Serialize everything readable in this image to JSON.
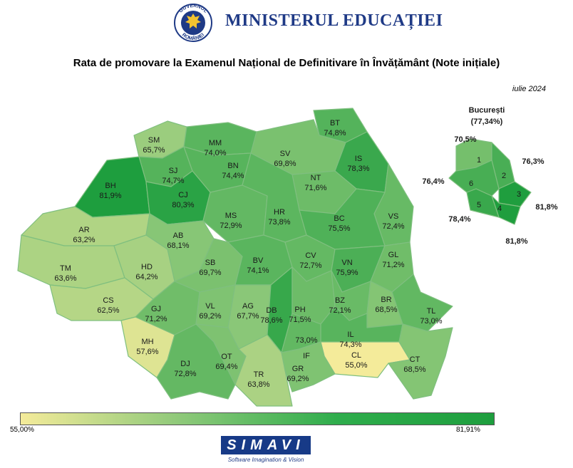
{
  "header": {
    "ministry": "MINISTERUL EDUCAȚIEI",
    "seal_top_text": "GUVERNUL",
    "seal_bottom_text": "ROMÂNIEI",
    "brand_color": "#1f3a86"
  },
  "title": "Rata de promovare la Examenul Național de Definitivare în Învățământ (Note inițiale)",
  "date": "iulie 2024",
  "counties": [
    {
      "code": "SM",
      "value": "65,7%"
    },
    {
      "code": "MM",
      "value": "74,0%"
    },
    {
      "code": "BT",
      "value": "74,8%"
    },
    {
      "code": "SV",
      "value": "69,8%"
    },
    {
      "code": "SJ",
      "value": "74,7%"
    },
    {
      "code": "BN",
      "value": "74,4%"
    },
    {
      "code": "IS",
      "value": "78,3%"
    },
    {
      "code": "BH",
      "value": "81,9%"
    },
    {
      "code": "CJ",
      "value": "80,3%"
    },
    {
      "code": "NT",
      "value": "71,6%"
    },
    {
      "code": "AR",
      "value": "63,2%"
    },
    {
      "code": "MS",
      "value": "72,9%"
    },
    {
      "code": "HR",
      "value": "73,8%"
    },
    {
      "code": "BC",
      "value": "75,5%"
    },
    {
      "code": "VS",
      "value": "72,4%"
    },
    {
      "code": "AB",
      "value": "68,1%"
    },
    {
      "code": "TM",
      "value": "63,6%"
    },
    {
      "code": "HD",
      "value": "64,2%"
    },
    {
      "code": "SB",
      "value": "69,7%"
    },
    {
      "code": "BV",
      "value": "74,1%"
    },
    {
      "code": "CV",
      "value": "72,7%"
    },
    {
      "code": "VN",
      "value": "75,9%"
    },
    {
      "code": "GL",
      "value": "71,2%"
    },
    {
      "code": "CS",
      "value": "62,5%"
    },
    {
      "code": "VL",
      "value": "69,2%"
    },
    {
      "code": "AG",
      "value": "67,7%"
    },
    {
      "code": "PH",
      "value": "71,5%"
    },
    {
      "code": "BZ",
      "value": "72,1%"
    },
    {
      "code": "BR",
      "value": "68,5%"
    },
    {
      "code": "TL",
      "value": "73,0%"
    },
    {
      "code": "GJ",
      "value": "71,2%"
    },
    {
      "code": "DB",
      "value": "78,6%"
    },
    {
      "code": "MH",
      "value": "57,6%"
    },
    {
      "code": "IL",
      "value": "74,3%"
    },
    {
      "code": "IF",
      "value": "73,0%"
    },
    {
      "code": "CL",
      "value": "55,0%"
    },
    {
      "code": "DJ",
      "value": "72,8%"
    },
    {
      "code": "OT",
      "value": "69,4%"
    },
    {
      "code": "TR",
      "value": "63,8%"
    },
    {
      "code": "GR",
      "value": "69,2%"
    },
    {
      "code": "CT",
      "value": "68,5%"
    }
  ],
  "bucuresti": {
    "title": "București",
    "total": "(77,34%)",
    "sectors": [
      {
        "sector": "1",
        "value": "70,5%"
      },
      {
        "sector": "2",
        "value": "76,3%"
      },
      {
        "sector": "3",
        "value": "81,8%"
      },
      {
        "sector": "4",
        "value": "81,8%"
      },
      {
        "sector": "5",
        "value": "78,4%"
      },
      {
        "sector": "6",
        "value": "76,4%"
      }
    ]
  },
  "legend": {
    "min_label": "55,00%",
    "max_label": "81,91%",
    "min_value": 55.0,
    "max_value": 81.91,
    "color_low": "#f4eb9a",
    "color_high": "#1e9e3e"
  },
  "footer": {
    "logo": "SIMAVI",
    "tagline": "Software Imagination & Vision"
  }
}
